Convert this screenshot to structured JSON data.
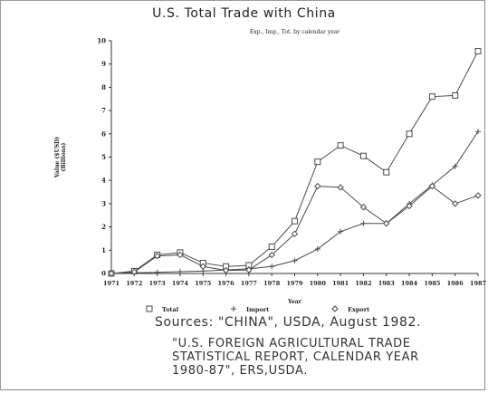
{
  "chart_data": {
    "type": "line",
    "title": "U.S. Total Trade with China",
    "subtitle": "Exp., Imp., Tot. by calendar year",
    "xlabel": "Year",
    "ylabel": [
      "Value ($USD)",
      "(Billions)"
    ],
    "x": [
      1971,
      1972,
      1973,
      1974,
      1975,
      1976,
      1977,
      1978,
      1979,
      1980,
      1981,
      1982,
      1983,
      1984,
      1985,
      1986,
      1987
    ],
    "ylim": [
      0,
      10
    ],
    "yticks": [
      0,
      1,
      2,
      3,
      4,
      5,
      6,
      7,
      8,
      9,
      10
    ],
    "grid": false,
    "legend_position": "bottom",
    "series": [
      {
        "name": "Total",
        "marker": "square",
        "values": [
          0.0,
          0.1,
          0.8,
          0.9,
          0.45,
          0.3,
          0.35,
          1.15,
          2.25,
          4.8,
          5.5,
          5.05,
          4.35,
          6.0,
          7.6,
          7.65,
          9.55
        ]
      },
      {
        "name": "Import",
        "marker": "plus",
        "values": [
          0.0,
          0.03,
          0.05,
          0.08,
          0.1,
          0.15,
          0.2,
          0.3,
          0.55,
          1.05,
          1.8,
          2.15,
          2.15,
          3.0,
          3.8,
          4.6,
          6.1
        ]
      },
      {
        "name": "Export",
        "marker": "diamond",
        "values": [
          0.0,
          0.07,
          0.75,
          0.8,
          0.3,
          0.13,
          0.15,
          0.8,
          1.7,
          3.75,
          3.7,
          2.85,
          2.15,
          2.9,
          3.75,
          3.0,
          3.35
        ]
      }
    ]
  },
  "sources": {
    "line1": "Sources: \"CHINA\", USDA, August 1982.",
    "line2": "\"U.S. FOREIGN AGRICULTURAL TRADE\nSTATISTICAL REPORT, CALENDAR YEAR\n1980-87\", ERS,USDA."
  },
  "colors": {
    "line": "#4a4a4a",
    "axis": "#333333",
    "text": "#222222"
  }
}
